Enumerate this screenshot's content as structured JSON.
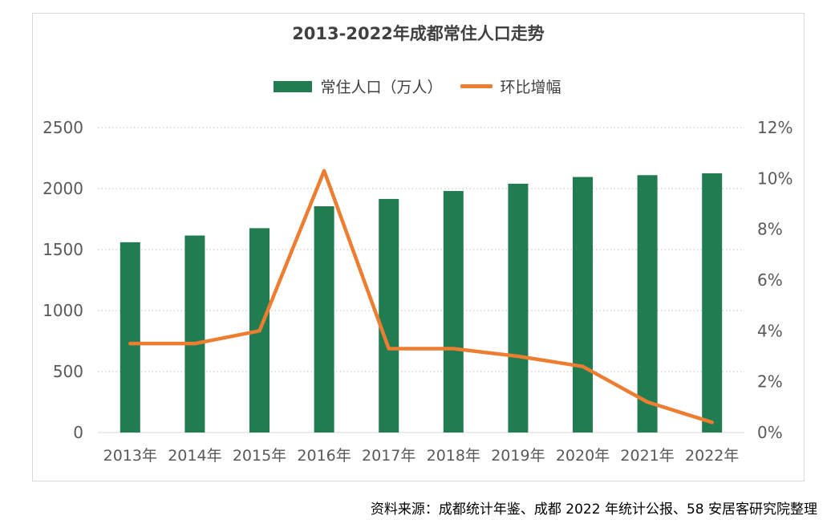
{
  "chart_data": {
    "type": "bar",
    "title": "2013-2022年成都常住人口走势",
    "categories": [
      "2013年",
      "2014年",
      "2015年",
      "2016年",
      "2017年",
      "2018年",
      "2019年",
      "2020年",
      "2021年",
      "2022年"
    ],
    "series": [
      {
        "name": "常住人口（万人）",
        "type": "bar",
        "axis": "left",
        "color": "#217d51",
        "values": [
          1560,
          1615,
          1675,
          1855,
          1915,
          1980,
          2040,
          2095,
          2110,
          2125
        ]
      },
      {
        "name": "环比增幅",
        "type": "line",
        "axis": "right",
        "color": "#ed7d31",
        "unit": "%",
        "values": [
          3.5,
          3.5,
          4.0,
          10.3,
          3.3,
          3.3,
          3.0,
          2.6,
          1.2,
          0.4
        ]
      }
    ],
    "ylim_left": [
      0,
      2500
    ],
    "ylim_right": [
      0,
      12
    ],
    "yticks_left": [
      "0",
      "500",
      "1000",
      "1500",
      "2000",
      "2500"
    ],
    "yticks_right": [
      "0%",
      "2%",
      "4%",
      "6%",
      "8%",
      "10%",
      "12%"
    ],
    "grid": "dotted horizontal",
    "legend_position": "top"
  },
  "source_note": "资料来源：成都统计年鉴、成都 2022 年统计公报、58 安居客研究院整理"
}
